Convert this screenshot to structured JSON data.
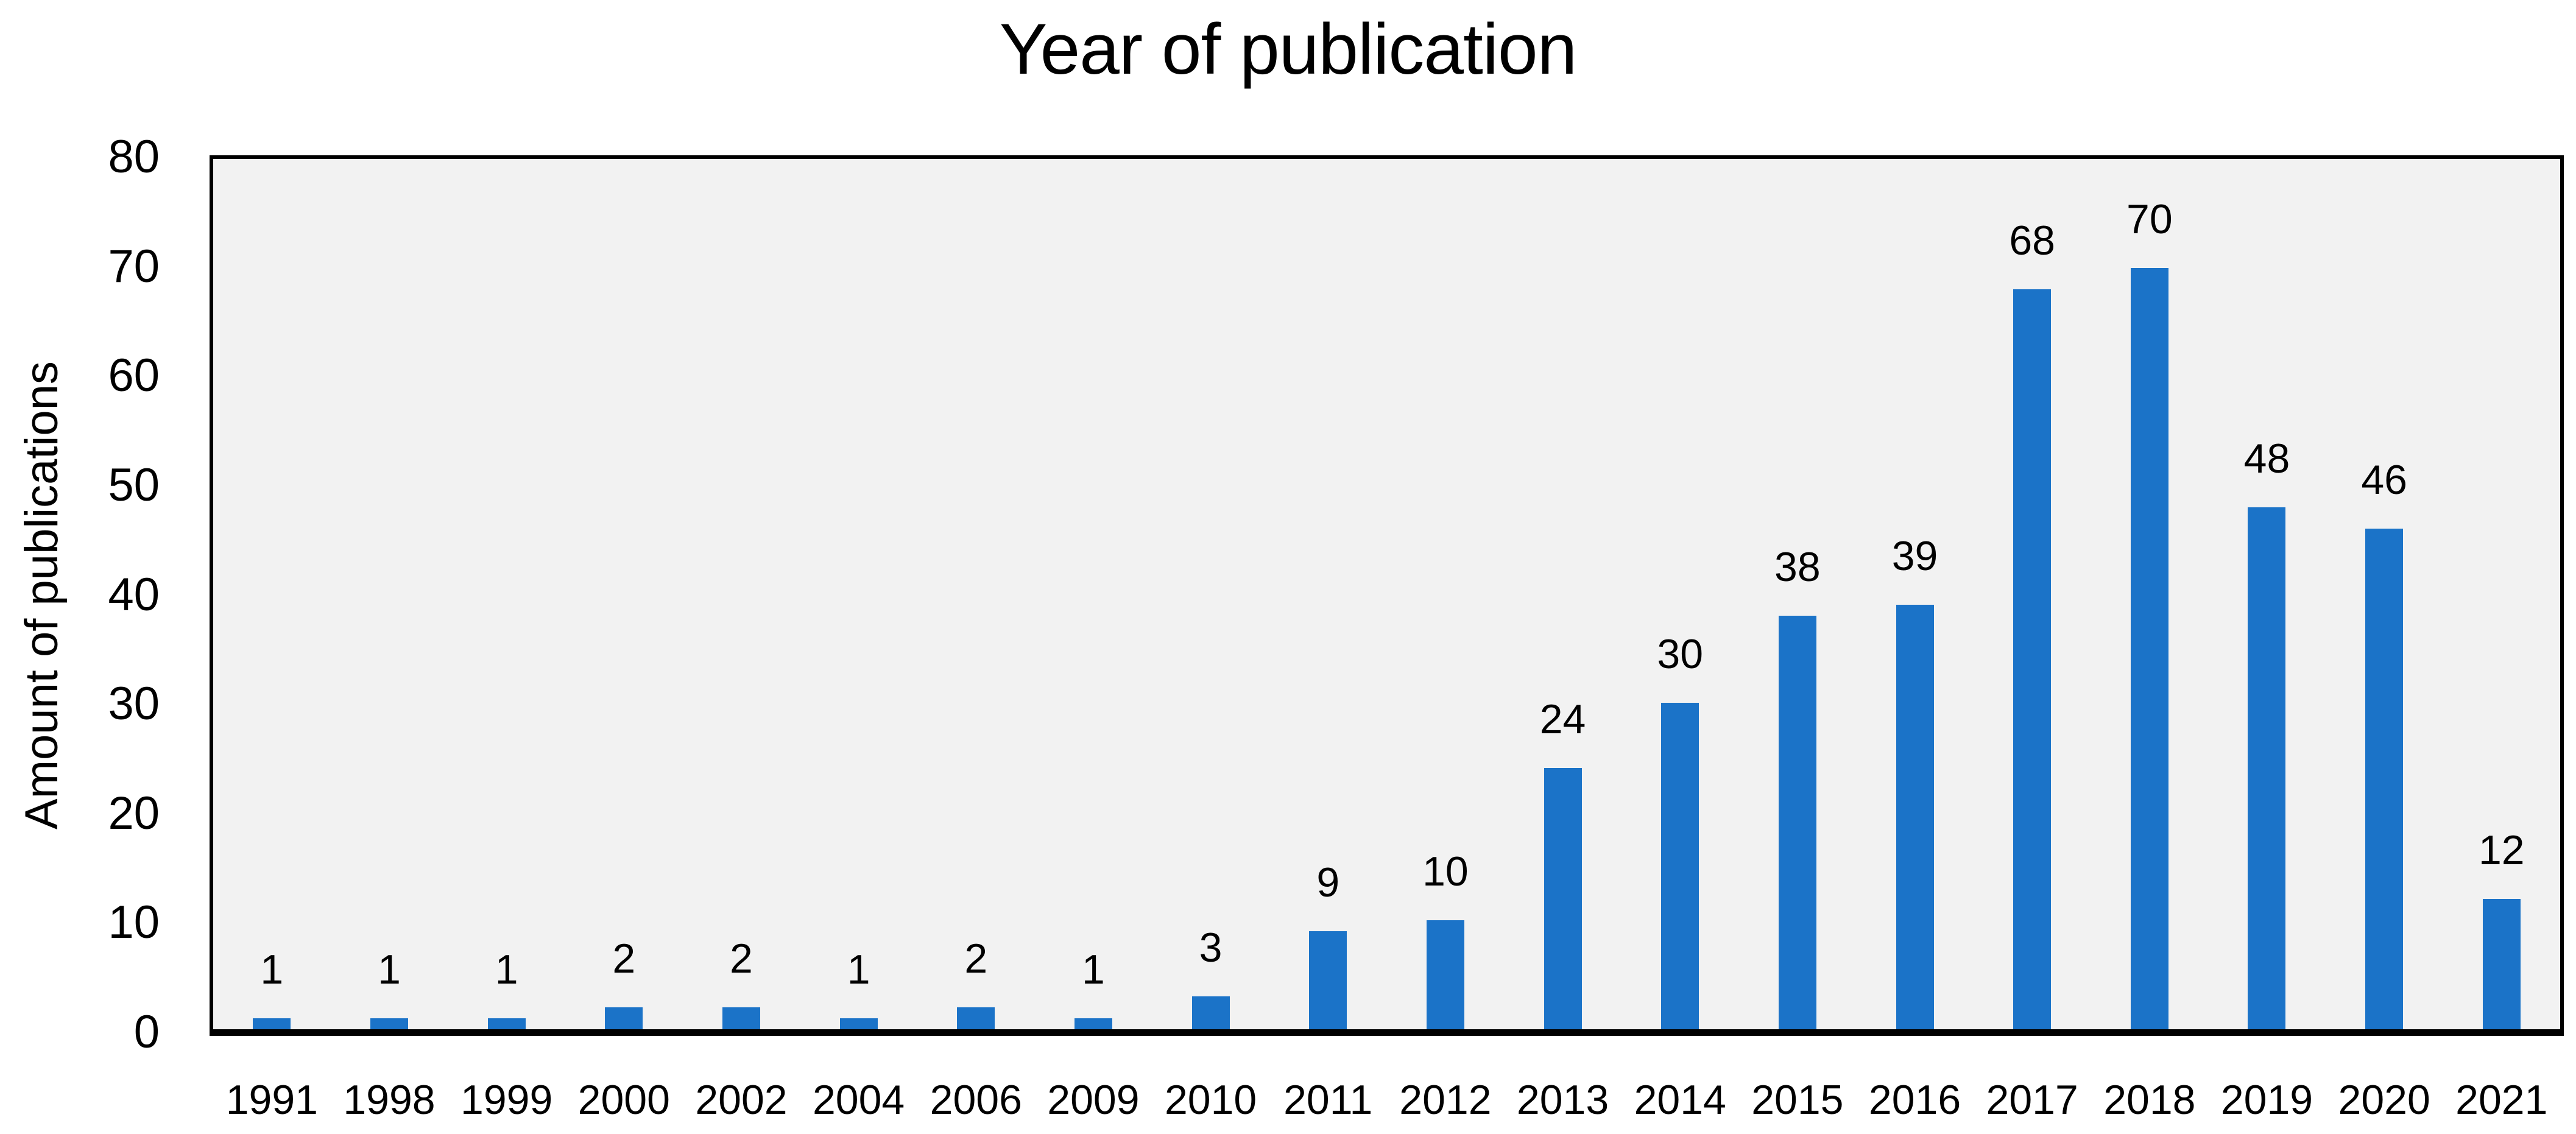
{
  "chart_data": {
    "type": "bar",
    "title": "Year of publication",
    "xlabel": "",
    "ylabel": "Amount of publications",
    "categories": [
      "1991",
      "1998",
      "1999",
      "2000",
      "2002",
      "2004",
      "2006",
      "2009",
      "2010",
      "2011",
      "2012",
      "2013",
      "2014",
      "2015",
      "2016",
      "2017",
      "2018",
      "2019",
      "2020",
      "2021"
    ],
    "values": [
      1,
      1,
      1,
      2,
      2,
      1,
      2,
      1,
      3,
      9,
      10,
      24,
      30,
      38,
      39,
      68,
      70,
      48,
      46,
      12
    ],
    "ylim": [
      0,
      80
    ],
    "yticks": [
      0,
      10,
      20,
      30,
      40,
      50,
      60,
      70,
      80
    ],
    "grid": false,
    "legend": false,
    "data_labels": true,
    "colors": {
      "bar_fill": "#1B73C8",
      "plot_background": "#F2F2F2",
      "frame": "#000000",
      "text": "#000000",
      "page_background": "#FFFFFF"
    }
  }
}
